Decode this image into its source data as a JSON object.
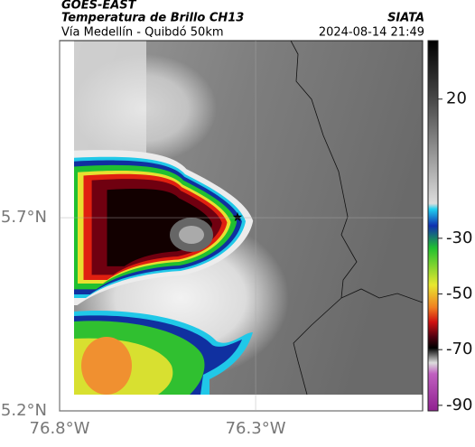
{
  "header": {
    "title": "GOES-EAST",
    "subtitle": "Temperatura de Brillo CH13",
    "route": "Vía Medellín - Quibdó 50km",
    "source": "SIATA",
    "datetime": "2024-08-14 21:49"
  },
  "map": {
    "xlim": [
      -76.8,
      -75.874
    ],
    "ylim": [
      5.2,
      6.158
    ],
    "xticks": [
      {
        "value": -76.8,
        "label": "76.8°W"
      },
      {
        "value": -76.3,
        "label": "76.3°W"
      }
    ],
    "yticks": [
      {
        "value": 5.2,
        "label": "5.2°N"
      },
      {
        "value": 5.7,
        "label": "5.7°N"
      }
    ]
  },
  "colorbar": {
    "lim": [
      41,
      -92
    ],
    "ticks": [
      20,
      -30,
      -50,
      -70,
      -90
    ]
  }
}
